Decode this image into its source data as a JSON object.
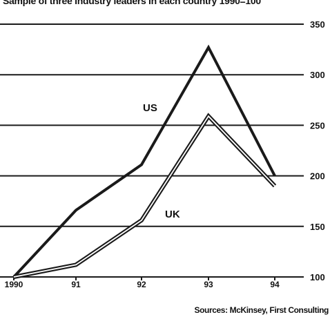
{
  "subtitle": "Sample of three industry leaders in each country 1990=100",
  "source": "Sources: McKinsey, First Consulting",
  "chart_data": {
    "type": "line",
    "subtitle": "Sample of three industry leaders in each country 1990=100",
    "categories": [
      "1990",
      "91",
      "92",
      "93",
      "94"
    ],
    "series": [
      {
        "name": "US",
        "values": [
          100,
          166,
          211,
          327,
          200
        ],
        "color": "#1a1a1a",
        "style": "solid"
      },
      {
        "name": "UK",
        "values": [
          100,
          112,
          156,
          259,
          190
        ],
        "color": "#1a1a1a",
        "style": "double"
      }
    ],
    "yticks": [
      100,
      150,
      200,
      250,
      300,
      350
    ],
    "ylim": [
      100,
      350
    ],
    "ytick_position": "right",
    "grid": "horizontal",
    "series_labels_inline": true
  }
}
